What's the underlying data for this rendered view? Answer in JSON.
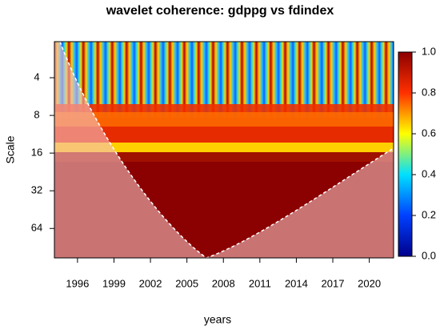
{
  "chart_data": {
    "type": "wavelet-coherence",
    "title": "wavelet coherence: gdppg vs fdindex",
    "xlabel": "years",
    "ylabel": "Scale",
    "xlim": [
      1994.1,
      2022.0
    ],
    "xticks": [
      1996,
      1999,
      2002,
      2005,
      2008,
      2011,
      2014,
      2017,
      2020
    ],
    "ylim": [
      2.06,
      110
    ],
    "ylog": true,
    "yreversed": true,
    "yticks": [
      4,
      8,
      16,
      32,
      64
    ],
    "colorbar": {
      "lim": [
        0,
        1
      ],
      "ticks": [
        {
          "value": 0,
          "label": "0.0"
        },
        0.2,
        0.4,
        0.6,
        0.8,
        {
          "value": 1,
          "label": "1.0"
        }
      ]
    }
  }
}
